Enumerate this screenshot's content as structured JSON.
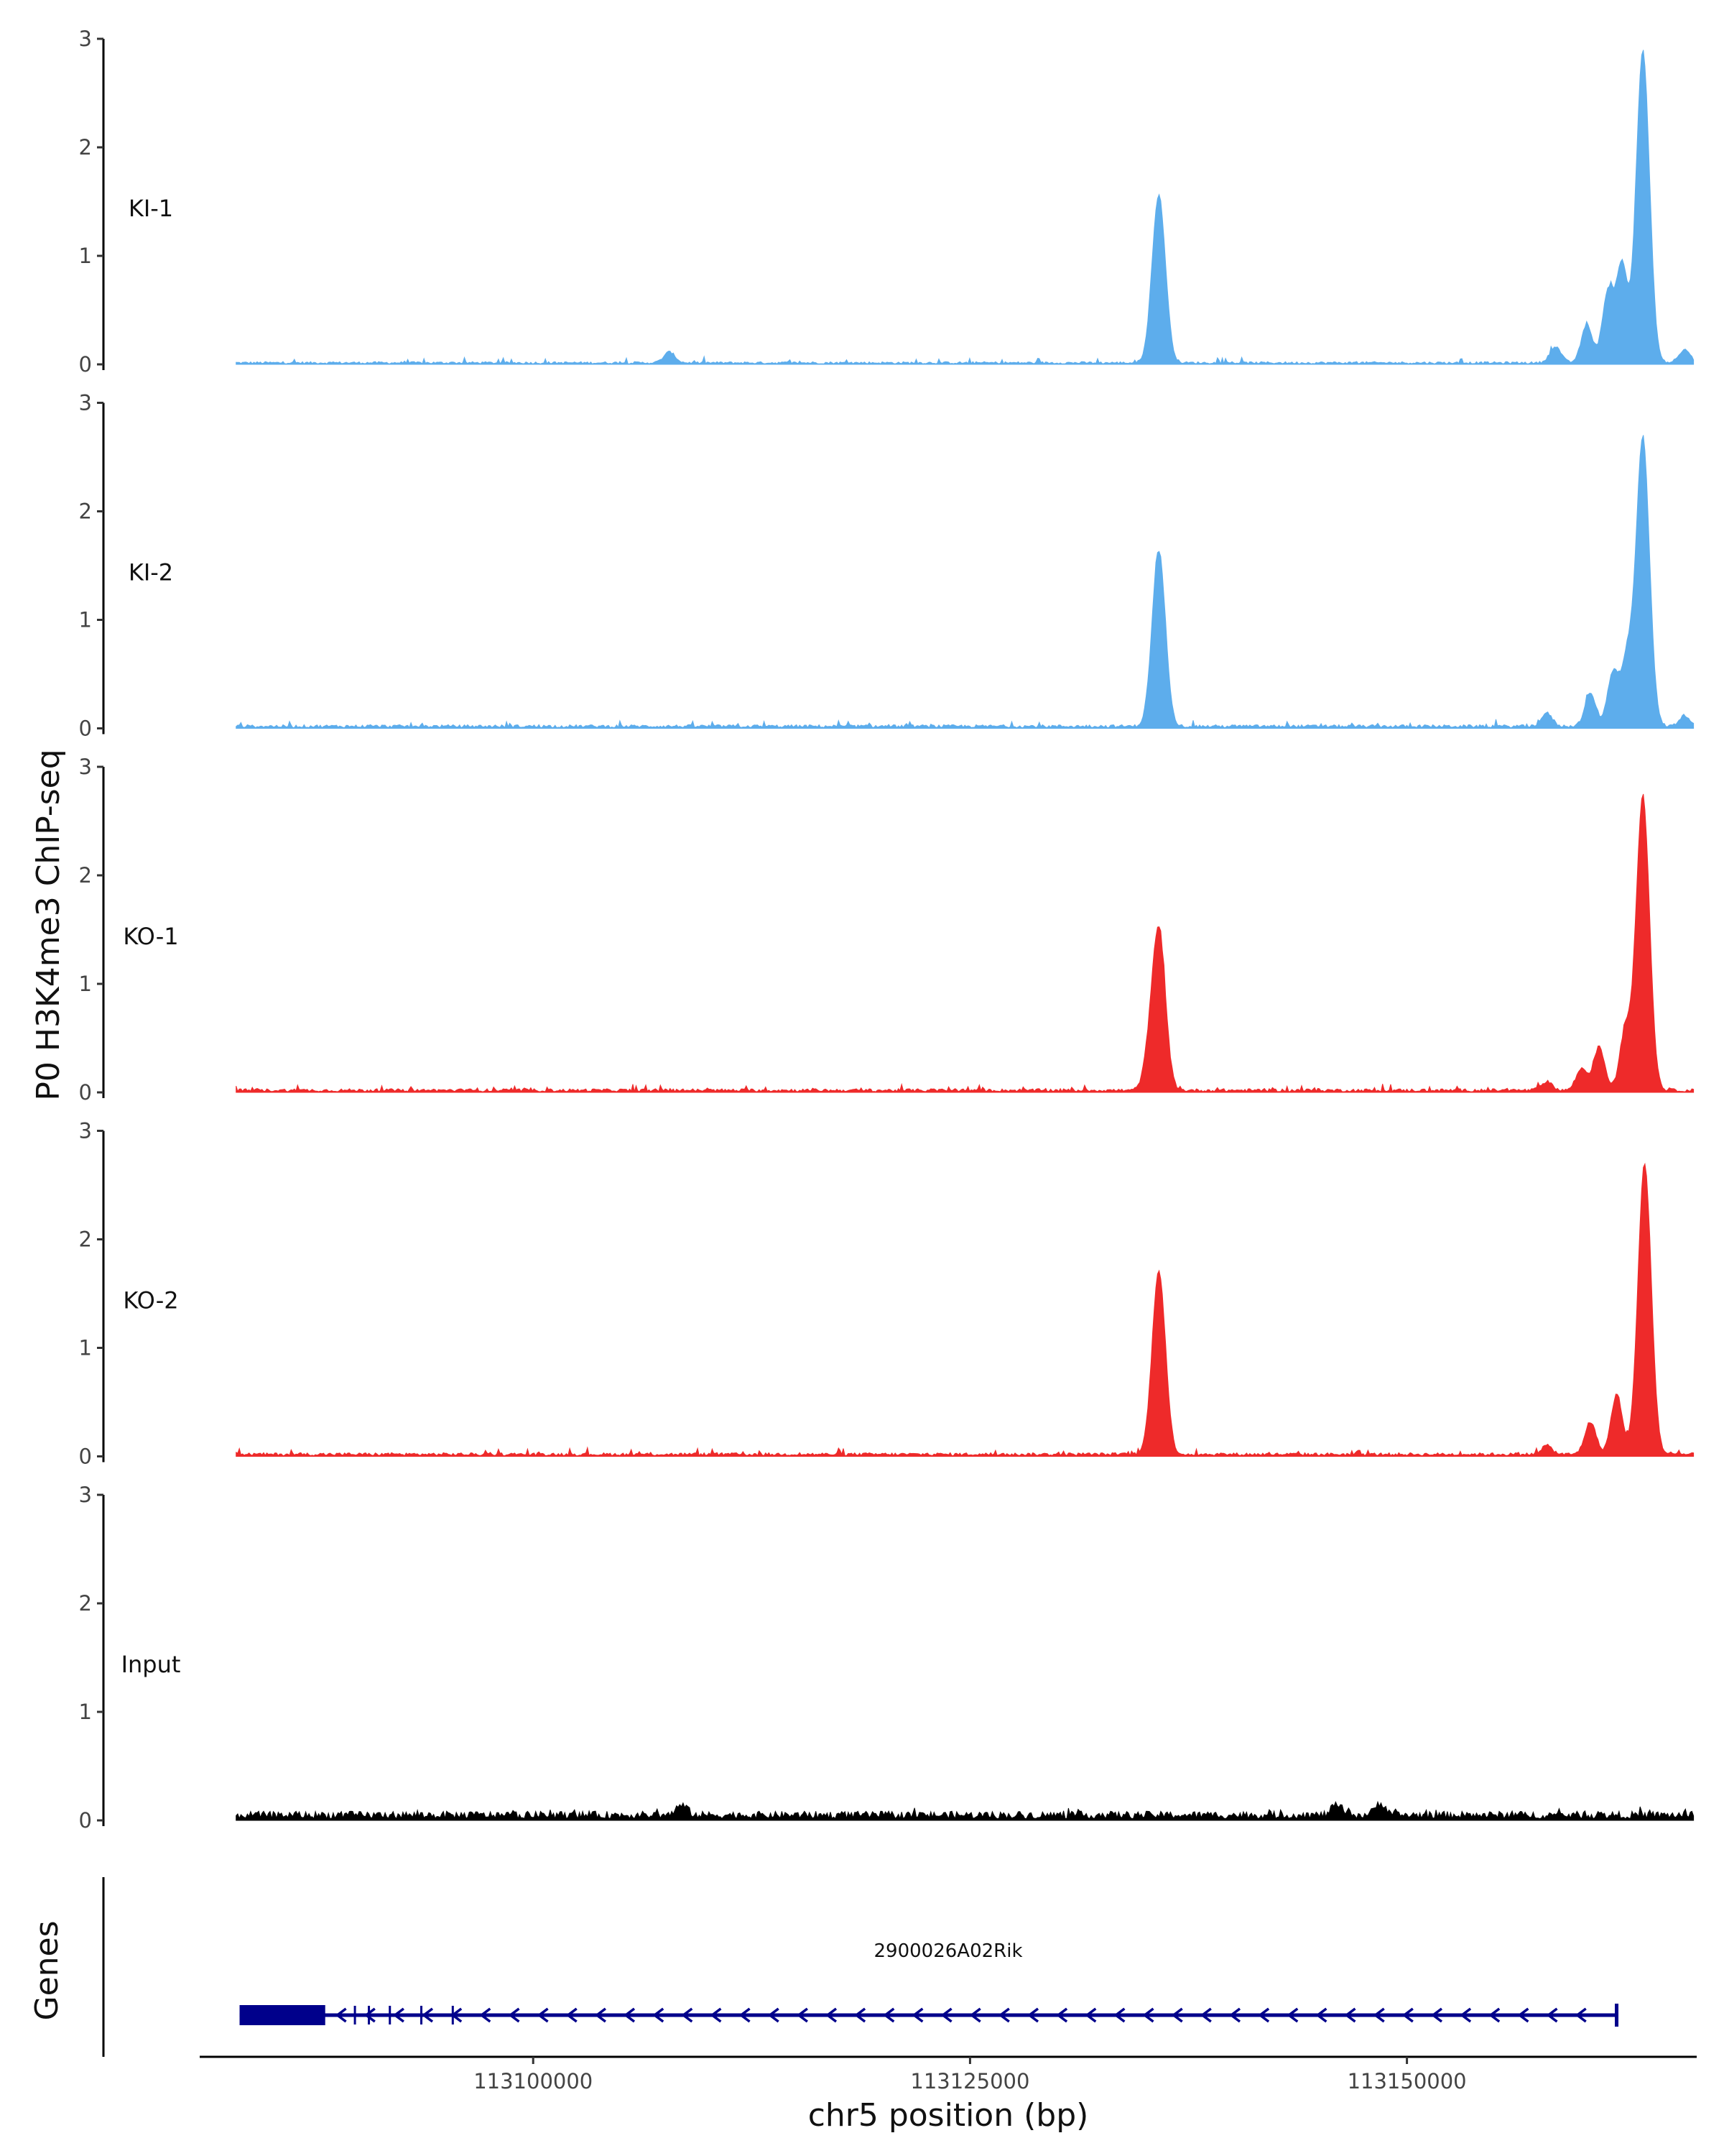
{
  "chart_data": {
    "type": "area",
    "ylabel": "P0 H3K4me3 ChIP-seq",
    "xlabel": "chr5 position (bp)",
    "genes_label": "Genes",
    "xlim": [
      113081000,
      113166500
    ],
    "ylim": [
      0,
      3
    ],
    "yticks": [
      "0",
      "1",
      "2",
      "3"
    ],
    "xticks": [
      {
        "value": 113100000,
        "label": "113100000"
      },
      {
        "value": 113125000,
        "label": "113125000"
      },
      {
        "value": 113150000,
        "label": "113150000"
      }
    ],
    "tracks": [
      {
        "name": "KI-1",
        "color": "#5DADEC",
        "baseline": 0.015,
        "peaks": [
          {
            "x": 113107800,
            "y": 0.1
          },
          {
            "x": 113135800,
            "y": 1.55
          },
          {
            "x": 113158500,
            "y": 0.15
          },
          {
            "x": 113160300,
            "y": 0.35
          },
          {
            "x": 113161500,
            "y": 0.65
          },
          {
            "x": 113162300,
            "y": 0.9
          },
          {
            "x": 113163500,
            "y": 2.88
          },
          {
            "x": 113165900,
            "y": 0.12
          }
        ]
      },
      {
        "name": "KI-2",
        "color": "#5DADEC",
        "baseline": 0.02,
        "peaks": [
          {
            "x": 113135800,
            "y": 1.62
          },
          {
            "x": 113158000,
            "y": 0.12
          },
          {
            "x": 113160500,
            "y": 0.3
          },
          {
            "x": 113161800,
            "y": 0.5
          },
          {
            "x": 113162600,
            "y": 0.6
          },
          {
            "x": 113163500,
            "y": 2.66
          },
          {
            "x": 113165900,
            "y": 0.1
          }
        ]
      },
      {
        "name": "KO-1",
        "color": "#EE2A2A",
        "baseline": 0.02,
        "peaks": [
          {
            "x": 113135200,
            "y": 0.2
          },
          {
            "x": 113135800,
            "y": 1.48
          },
          {
            "x": 113158000,
            "y": 0.08
          },
          {
            "x": 113160000,
            "y": 0.2
          },
          {
            "x": 113161000,
            "y": 0.4
          },
          {
            "x": 113162500,
            "y": 0.55
          },
          {
            "x": 113163500,
            "y": 2.72
          }
        ]
      },
      {
        "name": "KO-2",
        "color": "#EE2A2A",
        "baseline": 0.02,
        "peaks": [
          {
            "x": 113135800,
            "y": 1.7
          },
          {
            "x": 113158000,
            "y": 0.08
          },
          {
            "x": 113160500,
            "y": 0.3
          },
          {
            "x": 113162000,
            "y": 0.55
          },
          {
            "x": 113163600,
            "y": 2.68
          }
        ]
      },
      {
        "name": "Input",
        "color": "#000000",
        "baseline": 0.05,
        "peaks": [
          {
            "x": 113108500,
            "y": 0.09
          },
          {
            "x": 113146000,
            "y": 0.09
          },
          {
            "x": 113148500,
            "y": 0.11
          }
        ]
      }
    ],
    "gene": {
      "name": "2900026A02Rik",
      "strand": "-",
      "start": 113083200,
      "end": 113162000,
      "exon_start": 113083200,
      "exon_end": 113088100,
      "color": "#00008B"
    }
  }
}
